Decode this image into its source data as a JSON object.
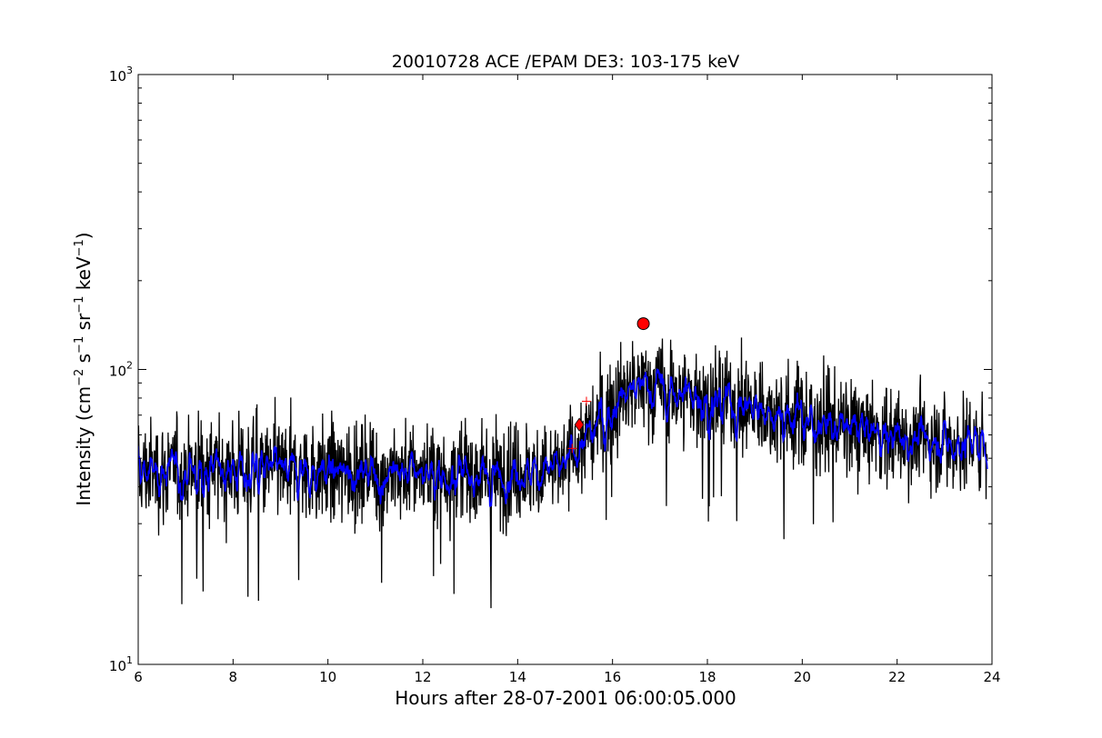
{
  "chart_data": {
    "type": "line",
    "title": "20010728 ACE /EPAM DE3: 103-175 keV",
    "xlabel": "Hours after 28-07-2001 06:00:05.000",
    "ylabel": {
      "main": "Intensity (cm",
      "cm_exp": "−2",
      "s": " s",
      "s_exp": "−1",
      "sr": " sr",
      "sr_exp": "−1",
      "kev": " keV",
      "kev_exp": "−1",
      "close": ")"
    },
    "x_range": [
      6,
      24
    ],
    "y_range": [
      10,
      1000
    ],
    "y_scale": "log",
    "x_ticks": [
      6,
      8,
      10,
      12,
      14,
      16,
      18,
      20,
      22,
      24
    ],
    "x_tick_labels": [
      "6",
      "8",
      "10",
      "12",
      "14",
      "16",
      "18",
      "20",
      "22",
      "24"
    ],
    "y_ticks": [
      10,
      100,
      1000
    ],
    "y_tick_labels": {
      "base": [
        "10",
        "10",
        "10"
      ],
      "exp": [
        "1",
        "2",
        "3"
      ]
    },
    "grid": false,
    "series": [
      {
        "color": "#000000",
        "style": "noisy line",
        "profile": {
          "x": [
            6.0,
            8.0,
            10.0,
            12.0,
            13.5,
            14.9,
            15.2,
            15.6,
            16.0,
            16.4,
            16.8,
            17.3,
            18.0,
            19.0,
            20.0,
            21.0,
            22.0,
            23.0,
            23.9
          ],
          "y": [
            45,
            46,
            45,
            45,
            44,
            46,
            52,
            62,
            75,
            85,
            88,
            84,
            80,
            74,
            69,
            63,
            59,
            57,
            56
          ]
        }
      },
      {
        "color": "#0000ff",
        "style": "smoothed line",
        "profile": {
          "x": [
            6.0,
            8.0,
            10.0,
            12.0,
            13.5,
            14.9,
            15.2,
            15.6,
            16.0,
            16.4,
            16.8,
            17.3,
            18.0,
            19.0,
            20.0,
            21.0,
            22.0,
            23.0,
            23.9
          ],
          "y": [
            45,
            46,
            45,
            45,
            44,
            46,
            52,
            62,
            75,
            85,
            88,
            84,
            80,
            74,
            69,
            63,
            59,
            57,
            56
          ]
        }
      }
    ],
    "markers": [
      {
        "shape": "circle",
        "color": "#ff0000",
        "x": 16.65,
        "y": 143
      },
      {
        "shape": "diamond",
        "color": "#ff0000",
        "x": 15.3,
        "y": 65
      },
      {
        "shape": "plus",
        "color": "#ff0000",
        "x": 15.45,
        "y": 78
      },
      {
        "shape": "plus",
        "color": "#ff0000",
        "x": 15.15,
        "y": 54
      }
    ]
  }
}
